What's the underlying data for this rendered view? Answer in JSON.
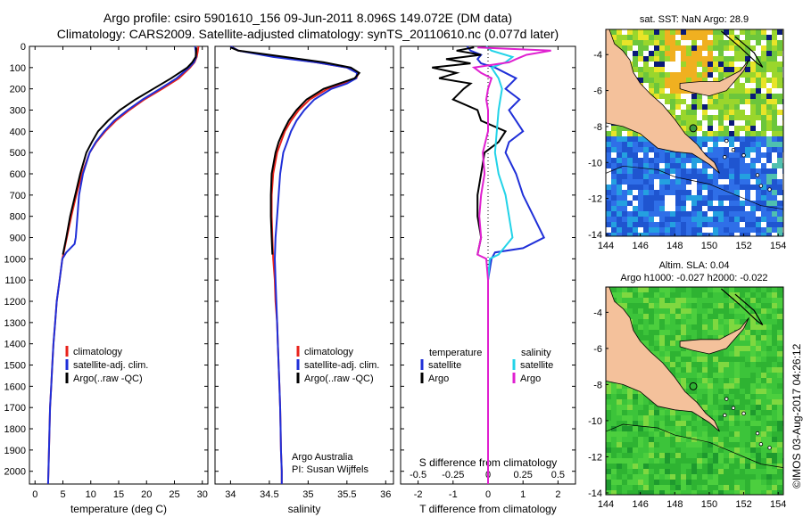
{
  "header": {
    "title_line1": "Argo profile: csiro 5901610_156 09-Jun-2011 8.096S 149.072E (DM data)",
    "title_line2": "Climatology: CARS2009. Satellite-adjusted climatology: synTS_20110610.nc (0.077d later)"
  },
  "side_label": "©IMOS 03-Aug-2017 04:26:12",
  "colors": {
    "clim": "#e8221b",
    "sat": "#1f2fd8",
    "argo": "#000000",
    "sal_sat": "#22d3e8",
    "sal_argo": "#e020d0",
    "land": "#f4c19b",
    "ocean_blue": "#1f5fd8",
    "ocean_green": "#34b53a",
    "yellow": "#e8e428",
    "navy": "#0a1a78"
  },
  "chart_data": [
    {
      "type": "line",
      "title": "",
      "xlabel": "temperature (deg C)",
      "ylabel": "",
      "xlim": [
        -1,
        31
      ],
      "ylim": [
        2060,
        0
      ],
      "xticks": [
        0,
        5,
        10,
        15,
        20,
        25,
        30
      ],
      "yticks": [
        0,
        100,
        200,
        300,
        400,
        500,
        600,
        700,
        800,
        900,
        1000,
        1100,
        1200,
        1300,
        1400,
        1500,
        1600,
        1700,
        1800,
        1900,
        2000
      ],
      "legend": [
        "climatology",
        "satellite-adj. clim.",
        "Argo(..raw -QC)"
      ],
      "legend_colors": [
        "clim",
        "sat",
        "argo"
      ],
      "series": [
        {
          "name": "climatology",
          "color": "clim",
          "depth": [
            0,
            20,
            50,
            75,
            100,
            150,
            200,
            250,
            300,
            350,
            400,
            450,
            500,
            600,
            700,
            800,
            900,
            1000,
            1100,
            1200,
            1300,
            1400,
            1500,
            1600,
            1700,
            1800,
            1900,
            2000,
            2060
          ],
          "values": [
            29.3,
            29.2,
            29.0,
            28.6,
            27.8,
            25.8,
            22.8,
            19.6,
            16.9,
            14.5,
            12.6,
            11.0,
            9.8,
            8.4,
            7.4,
            6.5,
            5.7,
            4.9,
            4.4,
            3.9,
            3.6,
            3.3,
            3.1,
            2.9,
            2.7,
            2.6,
            2.5,
            2.4,
            2.35
          ]
        },
        {
          "name": "satellite-adj. clim.",
          "color": "sat",
          "depth": [
            0,
            20,
            50,
            75,
            100,
            150,
            200,
            250,
            300,
            350,
            400,
            450,
            500,
            600,
            700,
            800,
            900,
            930,
            970,
            1000,
            1100,
            1200,
            1300,
            1400,
            1500,
            1600,
            1700,
            1800,
            1900,
            2000,
            2060
          ],
          "values": [
            28.7,
            28.8,
            28.9,
            28.5,
            27.6,
            25.4,
            22.4,
            19.3,
            16.6,
            14.2,
            12.4,
            10.9,
            9.8,
            8.6,
            7.9,
            7.6,
            7.3,
            7.1,
            5.6,
            4.9,
            4.4,
            3.9,
            3.6,
            3.3,
            3.1,
            2.9,
            2.7,
            2.6,
            2.5,
            2.4,
            2.35
          ]
        },
        {
          "name": "Argo(..raw -QC)",
          "color": "argo",
          "depth": [
            5,
            20,
            50,
            75,
            100,
            150,
            200,
            250,
            300,
            350,
            400,
            450,
            500,
            600,
            700,
            800,
            900,
            980
          ],
          "values": [
            28.9,
            28.9,
            28.8,
            28.2,
            27.3,
            24.4,
            21.2,
            18.0,
            15.2,
            13.1,
            11.3,
            10.2,
            9.2,
            8.1,
            7.2,
            6.3,
            5.6,
            5.0
          ]
        }
      ]
    },
    {
      "type": "line",
      "title": "",
      "xlabel": "salinity",
      "ylabel": "",
      "xlim": [
        33.8,
        36.1
      ],
      "ylim": [
        2060,
        0
      ],
      "xticks": [
        34,
        34.5,
        35,
        35.5,
        36
      ],
      "legend": [
        "climatology",
        "satellite-adj. clim.",
        "Argo(..raw -QC)"
      ],
      "legend_colors": [
        "clim",
        "sat",
        "argo"
      ],
      "annotation_line1": "Argo Australia",
      "annotation_line2": "PI: Susan Wijffels",
      "series": [
        {
          "name": "climatology",
          "color": "clim",
          "depth": [
            0,
            20,
            50,
            75,
            100,
            125,
            150,
            175,
            200,
            250,
            300,
            350,
            400,
            450,
            500,
            600,
            700,
            800,
            900,
            1000,
            1100,
            1200,
            1300,
            1400,
            1500,
            1600,
            1700,
            1800,
            1900,
            2000,
            2060
          ],
          "values": [
            34.0,
            34.1,
            34.6,
            35.1,
            35.5,
            35.65,
            35.62,
            35.45,
            35.25,
            35.02,
            34.88,
            34.78,
            34.7,
            34.65,
            34.6,
            34.55,
            34.53,
            34.53,
            34.54,
            34.55,
            34.57,
            34.58,
            34.6,
            34.61,
            34.62,
            34.63,
            34.64,
            34.645,
            34.65,
            34.66,
            34.66
          ]
        },
        {
          "name": "satellite-adj. clim.",
          "color": "sat",
          "depth": [
            0,
            20,
            50,
            75,
            100,
            125,
            150,
            175,
            200,
            250,
            300,
            350,
            400,
            450,
            500,
            600,
            700,
            800,
            900,
            1000,
            1100,
            1200,
            1300,
            1400,
            1500,
            1600,
            1700,
            1800,
            1900,
            2000,
            2060
          ],
          "values": [
            34.0,
            34.1,
            34.55,
            35.1,
            35.5,
            35.63,
            35.62,
            35.5,
            35.3,
            35.08,
            34.95,
            34.85,
            34.78,
            34.73,
            34.68,
            34.64,
            34.62,
            34.6,
            34.58,
            34.57,
            34.58,
            34.59,
            34.6,
            34.61,
            34.62,
            34.63,
            34.64,
            34.645,
            34.65,
            34.66,
            34.66
          ]
        },
        {
          "name": "Argo(..raw -QC)",
          "color": "argo",
          "depth": [
            5,
            20,
            50,
            75,
            100,
            125,
            150,
            175,
            200,
            250,
            300,
            350,
            400,
            450,
            500,
            600,
            700,
            800,
            900,
            980
          ],
          "values": [
            34.0,
            34.1,
            34.7,
            35.2,
            35.55,
            35.66,
            35.6,
            35.4,
            35.2,
            34.98,
            34.85,
            34.75,
            34.68,
            34.62,
            34.58,
            34.53,
            34.52,
            34.52,
            34.53,
            34.54
          ]
        }
      ]
    },
    {
      "type": "line",
      "title": "",
      "xlabel": "T difference from climatology",
      "xlabel_top": "S difference from climatology",
      "ylabel": "",
      "xlim": [
        -2.5,
        2.5
      ],
      "ylim": [
        2060,
        0
      ],
      "xticks": [
        -2,
        -1,
        0,
        1,
        2
      ],
      "s_ticks_labels": [
        "-0.5",
        "-0.25",
        "0",
        "0.25",
        "0.5"
      ],
      "s_ticks_at": [
        -2,
        -1,
        0,
        1,
        2
      ],
      "legend_temperature": "temperature",
      "legend_salinity": "salinity",
      "legend_items": [
        {
          "label": "satellite",
          "color": "sat"
        },
        {
          "label": "Argo",
          "color": "argo"
        },
        {
          "label": "satellite",
          "color": "sal_sat"
        },
        {
          "label": "Argo",
          "color": "sal_argo"
        }
      ],
      "series": [
        {
          "name": "temperature satellite",
          "color": "sat",
          "depth": [
            0,
            20,
            40,
            60,
            80,
            100,
            150,
            200,
            250,
            300,
            350,
            400,
            450,
            500,
            600,
            700,
            800,
            900,
            950,
            970,
            1000,
            1100,
            1200,
            1500,
            2060
          ],
          "values": [
            -0.6,
            -0.5,
            -0.2,
            -0.3,
            -0.2,
            0.2,
            0.8,
            0.5,
            0.9,
            0.6,
            0.8,
            1.0,
            0.6,
            0.5,
            0.8,
            1.0,
            1.3,
            1.6,
            1.0,
            0.2,
            0.1,
            0.0,
            0.0,
            0.0,
            0.0
          ]
        },
        {
          "name": "temperature Argo",
          "color": "argo",
          "depth": [
            5,
            20,
            40,
            60,
            80,
            100,
            125,
            150,
            175,
            200,
            250,
            300,
            350,
            400,
            450,
            500,
            600,
            700,
            800,
            900,
            980
          ],
          "values": [
            -0.4,
            -0.9,
            -0.2,
            -1.2,
            -0.5,
            -1.6,
            -0.9,
            -1.4,
            -0.5,
            -0.7,
            -1.0,
            -0.3,
            -0.2,
            0.5,
            0.3,
            -0.1,
            -0.2,
            -0.3,
            -0.3,
            -0.2,
            -0.3
          ]
        },
        {
          "name": "salinity satellite",
          "color": "sal_sat",
          "depth": [
            0,
            20,
            50,
            75,
            100,
            125,
            150,
            200,
            250,
            300,
            400,
            500,
            600,
            700,
            800,
            900,
            980,
            1000,
            1100,
            1500,
            2060
          ],
          "values": [
            -0.05,
            0.1,
            0.7,
            0.5,
            0.1,
            0.2,
            0.3,
            0.4,
            0.35,
            0.3,
            0.25,
            0.2,
            0.3,
            0.5,
            0.6,
            0.7,
            0.3,
            0.05,
            0.0,
            0.0,
            0.0
          ]
        },
        {
          "name": "salinity Argo",
          "color": "sal_argo",
          "depth": [
            5,
            20,
            40,
            60,
            75,
            100,
            125,
            150,
            200,
            250,
            300,
            400,
            500,
            600,
            700,
            800,
            900,
            980,
            1000,
            1100,
            1500,
            2060
          ],
          "values": [
            -0.3,
            1.8,
            1.1,
            0.8,
            0.6,
            -0.4,
            -0.2,
            0.1,
            0.0,
            -0.05,
            0.0,
            0.0,
            -0.15,
            -0.1,
            -0.2,
            -0.25,
            -0.2,
            -0.3,
            -0.05,
            0.0,
            0.0,
            0.0
          ]
        }
      ]
    },
    {
      "type": "heatmap",
      "title": "sat. SST: NaN Argo: 28.9",
      "xticks": [
        144,
        146,
        148,
        150,
        152,
        154
      ],
      "yticks": [
        -4,
        -6,
        -8,
        -10,
        -12,
        -14
      ],
      "xlim": [
        144,
        154.3
      ],
      "ylim": [
        -14.1,
        -2.6
      ]
    },
    {
      "type": "heatmap",
      "title": "Altim. SLA: 0.04",
      "subtitle": "Argo h1000: -0.027 h2000: -0.022",
      "xticks": [
        144,
        146,
        148,
        150,
        152,
        154
      ],
      "yticks": [
        -4,
        -6,
        -8,
        -10,
        -12,
        -14
      ],
      "xlim": [
        144,
        154.3
      ],
      "ylim": [
        -14.1,
        -2.6
      ]
    }
  ]
}
